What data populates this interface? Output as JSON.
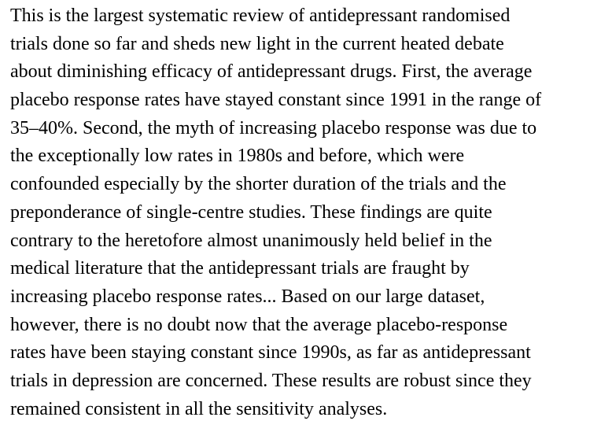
{
  "document": {
    "lines": [
      "This is the largest systematic review of antidepressant randomised",
      "trials done so far and sheds new light in the current heated debate",
      "about diminishing efficacy of antidepressant drugs. First, the average",
      "placebo response rates have stayed constant since 1991 in the range of",
      "35–40%. Second, the myth of increasing placebo response was due to",
      "the exceptionally low rates in 1980s and before, which were",
      "confounded especially by the shorter duration of the trials and the",
      "preponderance of single-centre studies. These findings are quite",
      "contrary to the heretofore almost unanimously held belief in the",
      "medical literature that the antidepressant trials are fraught by",
      "increasing placebo response rates... Based on our large dataset,",
      "however, there is no doubt now that the average placebo-response",
      "rates have been staying constant since 1990s, as far as antidepressant",
      "trials in depression are concerned. These results are robust since they",
      "remained consistent in all the sensitivity analyses."
    ]
  }
}
